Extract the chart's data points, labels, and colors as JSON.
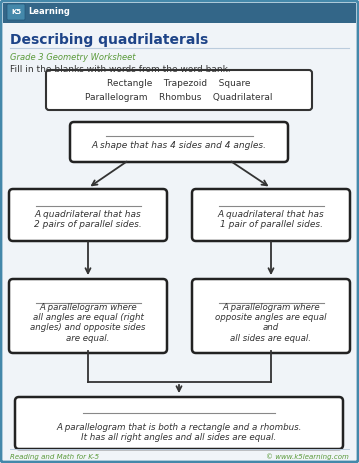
{
  "title": "Describing quadrilaterals",
  "subtitle": "Grade 3 Geometry Worksheet",
  "instruction": "Fill in the blanks with words from the word bank.",
  "word_bank_line1": "Rectangle    Trapezoid    Square",
  "word_bank_line2": "Parallelogram    Rhombus    Quadrilateral",
  "box0_text": "A shape that has 4 sides and 4 angles.",
  "box1_text": "A quadrilateral that has\n2 pairs of parallel sides.",
  "box2_text": "A quadrilateral that has\n1 pair of parallel sides.",
  "box3_text": "A parallelogram where\nall angles are equal (right\nangles) and opposite sides\nare equal.",
  "box4_text": "A parallelogram where\nopposite angles are equal\nand\nall sides are equal.",
  "box5_line1": "A parallelogram that is both a rectangle and a rhombus.",
  "box5_line2": "It has all right angles and all sides are equal.",
  "bg_color": "#f0f4f8",
  "box_fill": "#ffffff",
  "box_edge": "#222222",
  "title_color": "#1e4488",
  "subtitle_color": "#5a9a3a",
  "instruction_color": "#333333",
  "footer_left": "Reading and Math for K-5",
  "footer_right": "© www.k5learning.com",
  "border_color": "#4488aa",
  "arrow_color": "#333333",
  "line_color": "#999999",
  "text_color": "#333333"
}
